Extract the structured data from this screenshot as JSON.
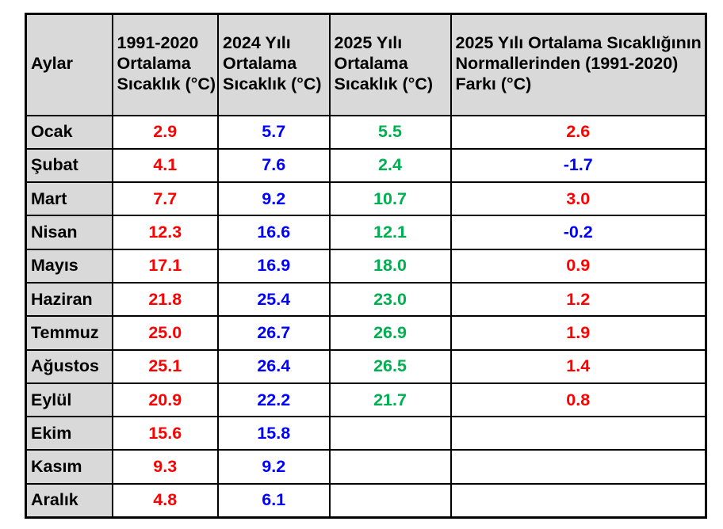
{
  "colors": {
    "header_background": "#d9d9d9",
    "month_background": "#d9d9d9",
    "border": "#000000",
    "header_text": "#000000",
    "avg_1991_2020_text": "#ff0000",
    "avg_2024_text": "#0000ff",
    "avg_2025_text": "#00b050",
    "diff_positive_text": "#ff0000",
    "diff_negative_text": "#0000ff"
  },
  "chart_data": {
    "type": "table",
    "columns": [
      "Aylar",
      "1991-2020 Ortalama Sıcaklık (°C)",
      "2024 Yılı Ortalama Sıcaklık (°C)",
      "2025 Yılı Ortalama Sıcaklık (°C)",
      "2025 Yılı Ortalama Sıcaklığının Normallerinden (1991-2020) Farkı (°C)"
    ],
    "months": [
      "Ocak",
      "Şubat",
      "Mart",
      "Nisan",
      "Mayıs",
      "Haziran",
      "Temmuz",
      "Ağustos",
      "Eylül",
      "Ekim",
      "Kasım",
      "Aralık"
    ],
    "avg_1991_2020": [
      2.9,
      4.1,
      7.7,
      12.3,
      17.1,
      21.8,
      25.0,
      25.1,
      20.9,
      15.6,
      9.3,
      4.8
    ],
    "avg_2024": [
      5.7,
      7.6,
      9.2,
      16.6,
      16.9,
      25.4,
      26.7,
      26.4,
      22.2,
      15.8,
      9.2,
      6.1
    ],
    "avg_2025": [
      5.5,
      2.4,
      10.7,
      12.1,
      18.0,
      23.0,
      26.9,
      26.5,
      21.7,
      null,
      null,
      null
    ],
    "diff_2025_from_normals": [
      2.6,
      -1.7,
      3.0,
      -0.2,
      0.9,
      1.2,
      1.9,
      1.4,
      0.8,
      null,
      null,
      null
    ]
  },
  "table": {
    "headers": {
      "months": "Aylar",
      "avg_1991_2020": "1991-2020\nOrtalama\nSıcaklık (°C)",
      "avg_2024": "2024 Yılı\nOrtalama\nSıcaklık (°C)",
      "avg_2025": "2025 Yılı\nOrtalama\nSıcaklık (°C)",
      "diff_2025": "2025 Yılı Ortalama Sıcaklığının\nNormallerinden (1991-2020)\nFarkı (°C)"
    },
    "rows": [
      {
        "month": "Ocak",
        "avg_1991_2020": "2.9",
        "avg_2024": "5.7",
        "avg_2025": "5.5",
        "diff_2025": "2.6"
      },
      {
        "month": "Şubat",
        "avg_1991_2020": "4.1",
        "avg_2024": "7.6",
        "avg_2025": "2.4",
        "diff_2025": "-1.7"
      },
      {
        "month": "Mart",
        "avg_1991_2020": "7.7",
        "avg_2024": "9.2",
        "avg_2025": "10.7",
        "diff_2025": "3.0"
      },
      {
        "month": "Nisan",
        "avg_1991_2020": "12.3",
        "avg_2024": "16.6",
        "avg_2025": "12.1",
        "diff_2025": "-0.2"
      },
      {
        "month": "Mayıs",
        "avg_1991_2020": "17.1",
        "avg_2024": "16.9",
        "avg_2025": "18.0",
        "diff_2025": "0.9"
      },
      {
        "month": "Haziran",
        "avg_1991_2020": "21.8",
        "avg_2024": "25.4",
        "avg_2025": "23.0",
        "diff_2025": "1.2"
      },
      {
        "month": "Temmuz",
        "avg_1991_2020": "25.0",
        "avg_2024": "26.7",
        "avg_2025": "26.9",
        "diff_2025": "1.9"
      },
      {
        "month": "Ağustos",
        "avg_1991_2020": "25.1",
        "avg_2024": "26.4",
        "avg_2025": "26.5",
        "diff_2025": "1.4"
      },
      {
        "month": "Eylül",
        "avg_1991_2020": "20.9",
        "avg_2024": "22.2",
        "avg_2025": "21.7",
        "diff_2025": "0.8"
      },
      {
        "month": "Ekim",
        "avg_1991_2020": "15.6",
        "avg_2024": "15.8",
        "avg_2025": "",
        "diff_2025": ""
      },
      {
        "month": "Kasım",
        "avg_1991_2020": "9.3",
        "avg_2024": "9.2",
        "avg_2025": "",
        "diff_2025": ""
      },
      {
        "month": "Aralık",
        "avg_1991_2020": "4.8",
        "avg_2024": "6.1",
        "avg_2025": "",
        "diff_2025": ""
      }
    ]
  }
}
